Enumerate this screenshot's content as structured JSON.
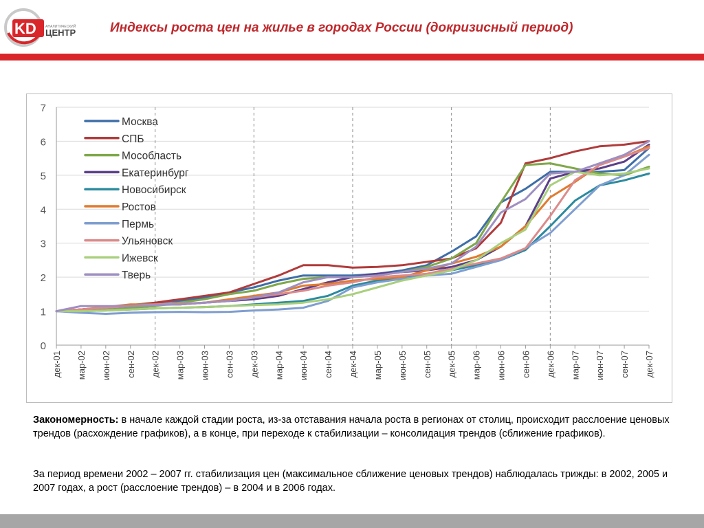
{
  "header": {
    "title": "Индексы роста цен на жилье в городах России (докризисный период)",
    "logo_letters": "KD",
    "logo_word": "ЦЕНТР",
    "logo_small": "АНАЛИТИЧЕСКИЙ"
  },
  "colors": {
    "accent": "#d8262b",
    "title": "#c0282c",
    "footer": "#a6a6a6"
  },
  "chart_data": {
    "type": "line",
    "x": [
      "дек-01",
      "мар-02",
      "июн-02",
      "сен-02",
      "дек-02",
      "мар-03",
      "июн-03",
      "сен-03",
      "дек-03",
      "мар-04",
      "июн-04",
      "сен-04",
      "дек-04",
      "мар-05",
      "июн-05",
      "сен-05",
      "дек-05",
      "мар-06",
      "июн-06",
      "сен-06",
      "дек-06",
      "мар-07",
      "июн-07",
      "сен-07",
      "дек-07"
    ],
    "ylim": [
      0,
      7
    ],
    "yticks": [
      "0",
      "1",
      "2",
      "3",
      "4",
      "5",
      "6",
      "7"
    ],
    "grid": "horizontal",
    "vlines_dashed": [
      "дек-02",
      "дек-03",
      "дек-04",
      "дек-05",
      "дек-06"
    ],
    "legend_position": "top-left",
    "series": [
      {
        "name": "Москва",
        "color": "#3e6ea8",
        "values": [
          1.0,
          1.05,
          1.1,
          1.18,
          1.25,
          1.3,
          1.4,
          1.55,
          1.7,
          1.9,
          2.05,
          2.05,
          2.05,
          2.1,
          2.2,
          2.35,
          2.75,
          3.2,
          4.2,
          4.6,
          5.1,
          5.1,
          5.1,
          5.15,
          5.8
        ]
      },
      {
        "name": "СПБ",
        "color": "#b03b3b",
        "values": [
          1.0,
          1.05,
          1.1,
          1.15,
          1.25,
          1.35,
          1.45,
          1.55,
          1.8,
          2.05,
          2.35,
          2.35,
          2.28,
          2.3,
          2.35,
          2.45,
          2.55,
          2.85,
          3.6,
          5.35,
          5.5,
          5.7,
          5.85,
          5.9,
          6.0
        ]
      },
      {
        "name": "Мособласть",
        "color": "#7fa84a",
        "values": [
          1.0,
          1.03,
          1.05,
          1.1,
          1.15,
          1.25,
          1.35,
          1.5,
          1.6,
          1.8,
          1.95,
          2.0,
          2.0,
          2.05,
          2.15,
          2.3,
          2.55,
          3.0,
          4.2,
          5.3,
          5.35,
          5.2,
          5.05,
          5.0,
          5.25
        ]
      },
      {
        "name": "Екатеринбург",
        "color": "#5b3f8a",
        "values": [
          1.0,
          1.05,
          1.1,
          1.15,
          1.2,
          1.2,
          1.25,
          1.3,
          1.35,
          1.45,
          1.65,
          1.85,
          2.0,
          2.1,
          2.15,
          2.2,
          2.3,
          2.5,
          2.9,
          3.5,
          4.9,
          5.1,
          5.2,
          5.4,
          5.9
        ]
      },
      {
        "name": "Новосибирск",
        "color": "#2b8a9e",
        "values": [
          1.0,
          1.0,
          1.02,
          1.05,
          1.08,
          1.1,
          1.12,
          1.15,
          1.2,
          1.25,
          1.3,
          1.45,
          1.75,
          1.9,
          2.0,
          2.05,
          2.2,
          2.35,
          2.5,
          2.8,
          3.5,
          4.25,
          4.7,
          4.85,
          5.05
        ]
      },
      {
        "name": "Ростов",
        "color": "#e07b2e",
        "values": [
          1.0,
          1.05,
          1.12,
          1.2,
          1.2,
          1.2,
          1.25,
          1.35,
          1.45,
          1.55,
          1.75,
          1.8,
          1.9,
          1.95,
          2.0,
          2.2,
          2.4,
          2.6,
          2.9,
          3.5,
          4.35,
          4.8,
          5.3,
          5.55,
          5.85
        ]
      },
      {
        "name": "Пермь",
        "color": "#7f9ed0",
        "values": [
          1.0,
          0.95,
          0.92,
          0.95,
          0.97,
          0.98,
          0.97,
          0.98,
          1.02,
          1.05,
          1.1,
          1.3,
          1.7,
          1.85,
          1.95,
          2.05,
          2.1,
          2.3,
          2.5,
          2.85,
          3.3,
          4.0,
          4.7,
          5.0,
          5.6
        ]
      },
      {
        "name": "Ульяновск",
        "color": "#dc8a8a",
        "values": [
          1.0,
          1.05,
          1.1,
          1.15,
          1.2,
          1.22,
          1.25,
          1.3,
          1.4,
          1.5,
          1.6,
          1.75,
          1.85,
          2.0,
          2.05,
          2.1,
          2.25,
          2.4,
          2.55,
          2.85,
          3.8,
          4.85,
          5.3,
          5.55,
          5.8
        ]
      },
      {
        "name": "Ижевск",
        "color": "#a9cf7c",
        "values": [
          1.0,
          1.0,
          1.02,
          1.05,
          1.08,
          1.1,
          1.12,
          1.15,
          1.18,
          1.2,
          1.25,
          1.35,
          1.5,
          1.7,
          1.9,
          2.05,
          2.2,
          2.5,
          3.0,
          3.4,
          4.7,
          5.1,
          5.0,
          5.05,
          5.2
        ]
      },
      {
        "name": "Тверь",
        "color": "#9e8fc2",
        "values": [
          1.0,
          1.15,
          1.15,
          1.15,
          1.18,
          1.2,
          1.25,
          1.3,
          1.4,
          1.55,
          1.85,
          2.0,
          2.0,
          2.05,
          2.15,
          2.25,
          2.4,
          2.9,
          3.9,
          4.3,
          5.05,
          5.1,
          5.35,
          5.6,
          6.0
        ]
      }
    ]
  },
  "text": {
    "p1_bold": "Закономерность:",
    "p1_rest": " в начале каждой стадии роста, из-за отставания начала роста в регионах от столиц, происходит расслоение ценовых трендов (расхождение графиков), а в конце, при переходе к стабилизации – консолидация трендов (сближение графиков).",
    "p2": "За период времени 2002 – 2007 гг. стабилизация цен (максимальное сближение ценовых трендов) наблюдалась трижды: в 2002, 2005 и 2007 годах, а рост (расслоение трендов) – в 2004 и в 2006 годах."
  }
}
